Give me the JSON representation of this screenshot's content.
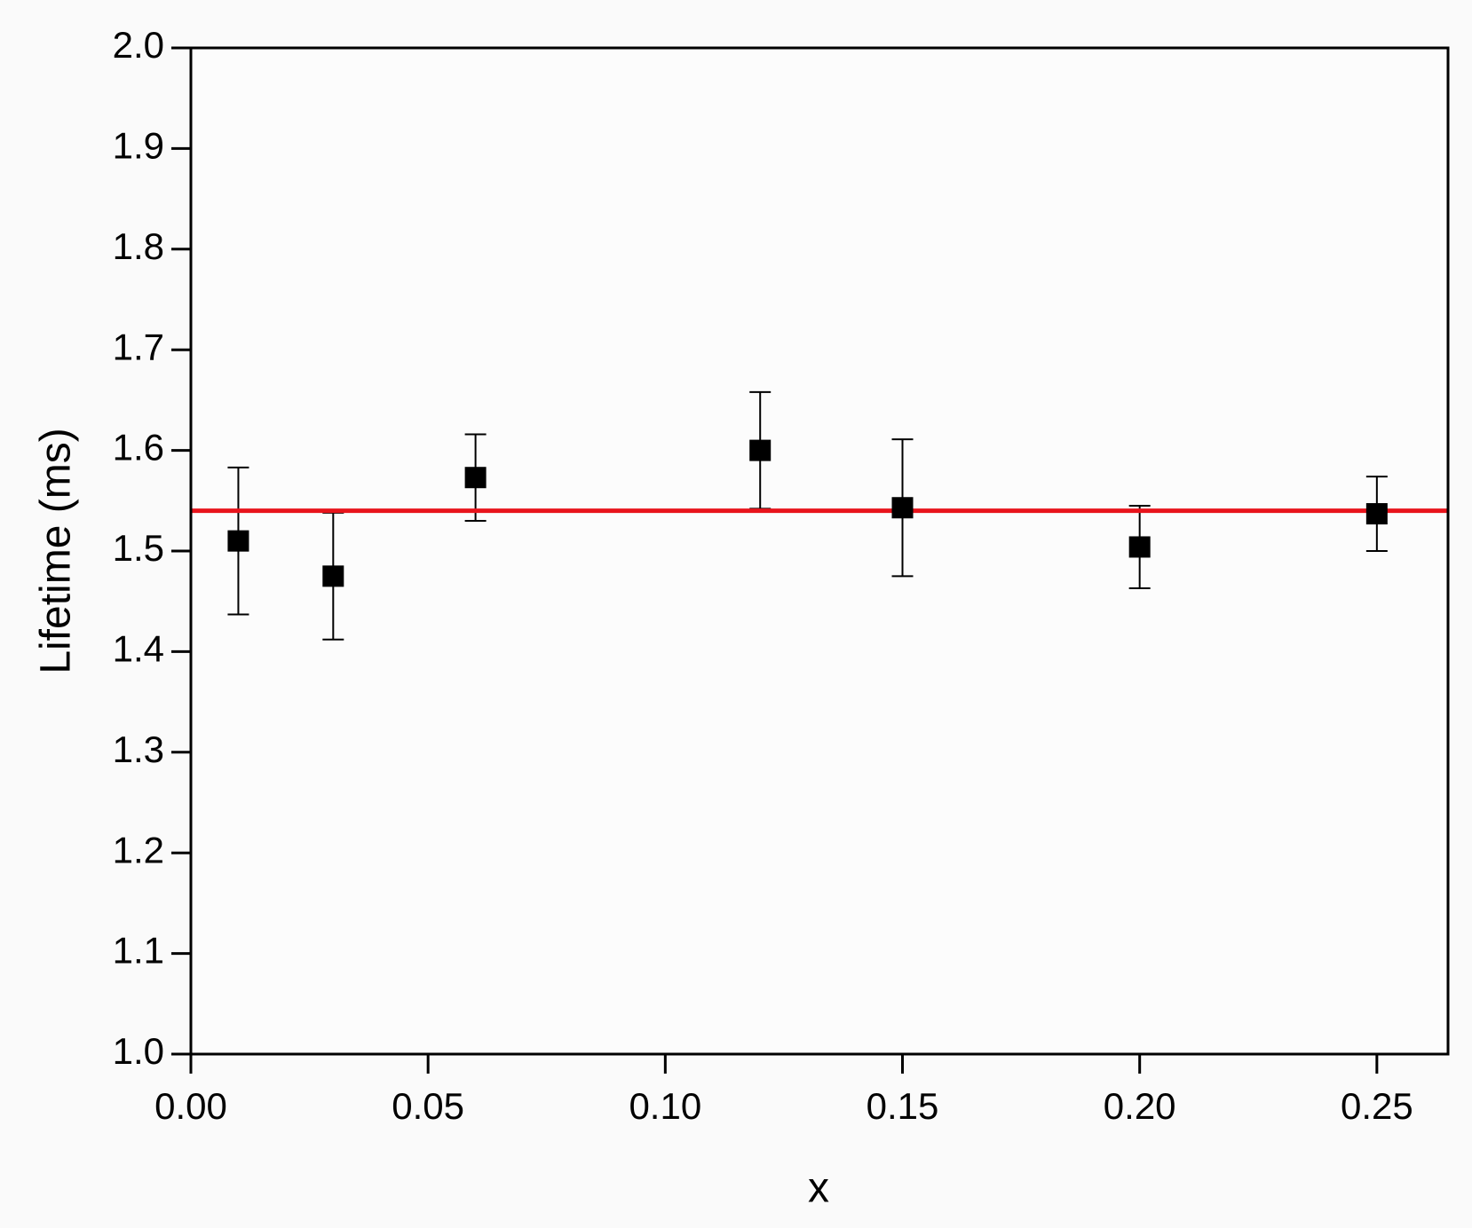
{
  "chart_data": {
    "type": "scatter",
    "x_label": "x",
    "y_label": "Lifetime (ms)",
    "x": [
      0.01,
      0.03,
      0.06,
      0.12,
      0.15,
      0.2,
      0.25
    ],
    "values": [
      1.51,
      1.475,
      1.573,
      1.6,
      1.543,
      1.504,
      1.537
    ],
    "errors": [
      0.073,
      0.063,
      0.043,
      0.058,
      0.068,
      0.041,
      0.037
    ],
    "color": "#000000",
    "reference_line": {
      "value": 1.54,
      "color": "#e8141c"
    },
    "xlim": [
      0,
      0.265
    ],
    "ylim": [
      1.0,
      2.0
    ],
    "xticks": [
      {
        "value": 0,
        "label": "0.00"
      },
      {
        "value": 0.05,
        "label": "0.05"
      },
      {
        "value": 0.1,
        "label": "0.10"
      },
      {
        "value": 0.15,
        "label": "0.15"
      },
      {
        "value": 0.2,
        "label": "0.20"
      },
      {
        "value": 0.25,
        "label": "0.25"
      }
    ],
    "yticks": [
      {
        "value": 1.0,
        "label": "1.0"
      },
      1.1,
      1.2,
      1.3,
      1.4,
      1.5,
      1.6,
      1.7,
      1.8,
      1.9,
      {
        "value": 2.0,
        "label": "2.0"
      }
    ],
    "grid": false
  }
}
